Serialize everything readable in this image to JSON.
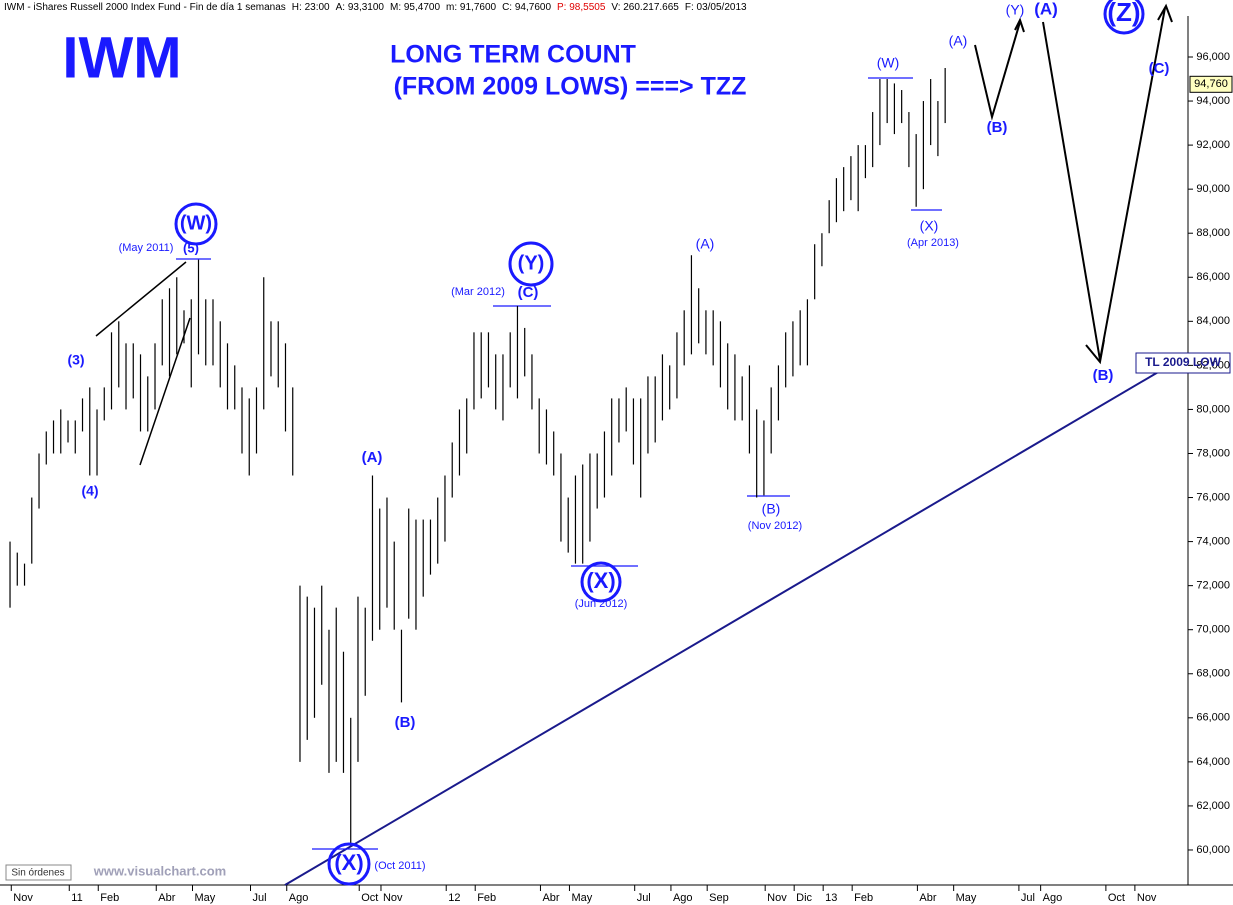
{
  "chart_data": {
    "type": "range-bar",
    "header": [
      "IWM - iShares Russell 2000 Index Fund - Fin de día 1 semanas",
      "H: 23:00",
      "A: 93,3100",
      "M: 95,4700",
      "m: 91,7600",
      "C: 94,7600",
      "P: 98,5505",
      "V: 260.217.665",
      "F: 03/05/2013"
    ],
    "annotations": [
      "IWM",
      "LONG TERM COUNT",
      "(FROM 2009 LOWS) ===> TZZ",
      "(W)",
      "(May 2011)",
      "(5)",
      "(3)",
      "(4)",
      "(A)",
      "(B)",
      "(X)",
      "(Oct 2011)",
      "(Y)",
      "(Mar 2012)",
      "(C)",
      "(X)",
      "(Jun 2012)",
      "(A)",
      "(B)",
      "(Nov 2012)",
      "(W)",
      "(X)",
      "(Apr 2013)",
      "(A)",
      "(B)",
      "(Y)",
      "(A)",
      "(B)",
      "(Z)",
      "(C)",
      "TL 2009 LOW",
      "Sin órdenes",
      "www.visualchart.com"
    ],
    "categories": [
      null,
      "Nov",
      null,
      null,
      null,
      null,
      null,
      null,
      null,
      "11",
      null,
      null,
      null,
      "Feb",
      null,
      null,
      null,
      null,
      null,
      null,
      null,
      "Abr",
      null,
      null,
      null,
      null,
      "May",
      null,
      null,
      null,
      null,
      null,
      null,
      null,
      "Jul",
      null,
      null,
      null,
      null,
      "Ago",
      null,
      null,
      null,
      null,
      null,
      null,
      null,
      null,
      null,
      "Oct",
      null,
      null,
      "Nov",
      null,
      null,
      null,
      null,
      null,
      null,
      null,
      null,
      "12",
      null,
      null,
      null,
      "Feb",
      null,
      null,
      null,
      null,
      null,
      null,
      null,
      null,
      "Abr",
      null,
      null,
      null,
      "May",
      null,
      null,
      null,
      null,
      null,
      null,
      null,
      null,
      "Jul",
      null,
      null,
      null,
      null,
      "Ago",
      null,
      null,
      null,
      null,
      "Sep",
      null,
      null,
      null,
      null,
      null,
      null,
      null,
      "Nov",
      null,
      null,
      null,
      "Dic",
      null,
      null,
      null,
      "13",
      null,
      null,
      null,
      "Feb",
      null,
      null,
      null,
      null,
      null,
      null,
      null,
      null,
      "Abr",
      null,
      null,
      null,
      null,
      "May",
      null,
      null,
      null,
      null,
      null,
      null,
      null,
      null,
      "Jul",
      null,
      null,
      "Ago",
      null,
      null,
      null,
      null,
      null,
      null,
      null,
      null,
      "Oct",
      null,
      null,
      null,
      "Nov",
      null,
      null,
      null,
      null,
      null,
      null
    ],
    "high": [
      74,
      73.5,
      73,
      76,
      78,
      79,
      79.5,
      80,
      79.5,
      79.5,
      80.5,
      81,
      80,
      81,
      83.5,
      84,
      83,
      83,
      82.5,
      81.5,
      83,
      85,
      85.5,
      86,
      84.5,
      85,
      86.8,
      85,
      85,
      84,
      83,
      82,
      81,
      80.5,
      81,
      86,
      84,
      84,
      83,
      81,
      72,
      71.5,
      71,
      72,
      70,
      71,
      69,
      66,
      71.5,
      71,
      77,
      75.5,
      76,
      74,
      70,
      75.5,
      75,
      75,
      75,
      76,
      77,
      78.5,
      80,
      80.5,
      83.5,
      83.5,
      83.5,
      82.5,
      82.5,
      83.5,
      84.7,
      83.7,
      82.5,
      80.5,
      80,
      79,
      78,
      76,
      77,
      77.5,
      78,
      78,
      79,
      80.5,
      80.5,
      81,
      80.5,
      80.5,
      81.5,
      81.5,
      82.5,
      82,
      83.5,
      84.5,
      87,
      85.5,
      84.5,
      84.5,
      84,
      83,
      82.5,
      81.5,
      82,
      80,
      79.5,
      81,
      82,
      83.5,
      84,
      84.5,
      85,
      87.5,
      88,
      89.5,
      90.5,
      91,
      91.5,
      92,
      92,
      93.5,
      95,
      95,
      94.8,
      94.5,
      93.5,
      92.5,
      94,
      95,
      94,
      95.5,
      null,
      null,
      null,
      null,
      null,
      null,
      null,
      null,
      null,
      null,
      null,
      null,
      null,
      null,
      null,
      null,
      null,
      null,
      null,
      null,
      null,
      null,
      null,
      null,
      null,
      null,
      null,
      null,
      null,
      null,
      null,
      null,
      null
    ],
    "low": [
      71,
      72,
      72,
      73,
      75.5,
      77.5,
      78,
      78,
      78.5,
      78,
      79,
      77,
      77,
      79.5,
      80,
      81,
      80,
      80.5,
      79,
      79,
      80,
      82,
      81.5,
      82.5,
      83,
      81,
      82.5,
      82,
      82,
      81,
      80,
      80,
      78,
      77,
      78,
      80,
      81.5,
      81,
      79,
      77,
      64,
      65,
      66,
      67.5,
      63.5,
      64,
      63.5,
      60.3,
      64,
      67,
      69.5,
      70,
      71,
      70,
      66.7,
      70.5,
      70,
      71.5,
      72.5,
      73,
      74,
      76,
      77,
      78,
      80,
      80.5,
      81,
      80,
      79.5,
      81,
      80.5,
      81.5,
      80,
      78,
      77.5,
      77,
      74,
      73.5,
      73,
      73,
      74,
      75.5,
      76,
      77,
      78.5,
      79,
      77.5,
      76,
      78,
      78.5,
      79.5,
      80,
      80.5,
      82,
      82.5,
      83,
      82.5,
      82,
      81,
      80,
      79.5,
      79.5,
      78,
      76,
      76.1,
      78,
      79.5,
      81,
      81.5,
      82,
      82,
      85,
      86.5,
      88,
      88.5,
      89,
      89.5,
      89,
      90.5,
      91,
      92,
      93,
      92.5,
      93,
      91,
      89.2,
      90,
      92,
      91.5,
      93,
      null,
      null,
      null,
      null,
      null,
      null,
      null,
      null,
      null,
      null,
      null,
      null,
      null,
      null,
      null,
      null,
      null,
      null,
      null,
      null,
      null,
      null,
      null,
      null,
      null,
      null,
      null,
      null,
      null,
      null,
      null,
      null,
      null
    ],
    "color": "#000000",
    "last": {
      "value": 94.76,
      "label": "94,760"
    },
    "ylim": [
      58.41,
      97.77
    ],
    "yticks": [
      {
        "value": 60,
        "label": "60,000"
      },
      {
        "value": 62,
        "label": "62,000"
      },
      {
        "value": 64,
        "label": "64,000"
      },
      {
        "value": 66,
        "label": "66,000"
      },
      {
        "value": 68,
        "label": "68,000"
      },
      {
        "value": 70,
        "label": "70,000"
      },
      {
        "value": 72,
        "label": "72,000"
      },
      {
        "value": 74,
        "label": "74,000"
      },
      {
        "value": 76,
        "label": "76,000"
      },
      {
        "value": 78,
        "label": "78,000"
      },
      {
        "value": 80,
        "label": "80,000"
      },
      {
        "value": 82,
        "label": "82,000"
      },
      {
        "value": 84,
        "label": "84,000"
      },
      {
        "value": 86,
        "label": "86,000"
      },
      {
        "value": 88,
        "label": "88,000"
      },
      {
        "value": 90,
        "label": "90,000"
      },
      {
        "value": 92,
        "label": "92,000"
      },
      {
        "value": 94,
        "label": "94,000"
      },
      {
        "value": 96,
        "label": "96,000"
      }
    ],
    "grid": false
  }
}
